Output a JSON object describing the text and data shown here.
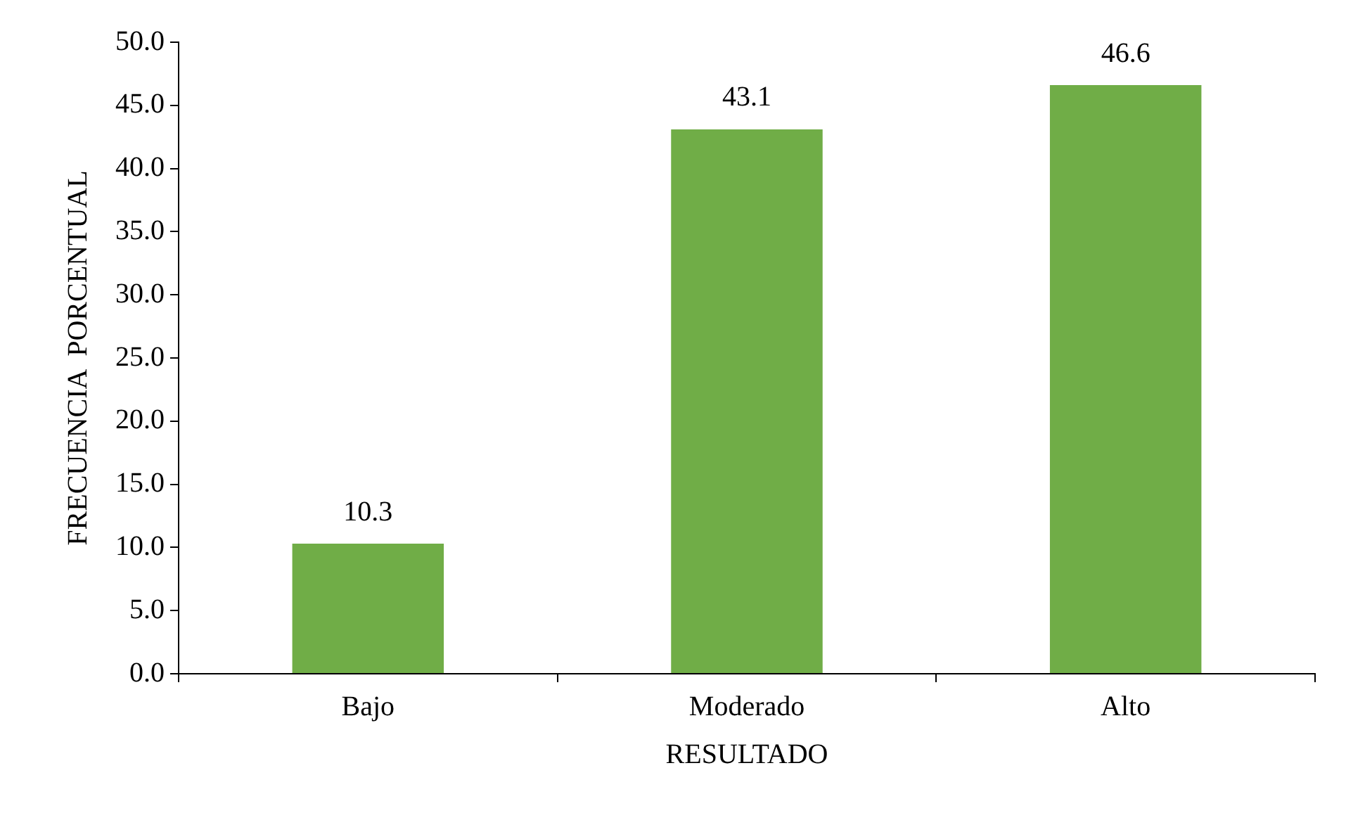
{
  "chart_data": {
    "type": "bar",
    "xlabel": "RESULTADO",
    "ylabel": "FRECUENCIA  PORCENTUAL",
    "categories": [
      "Bajo",
      "Moderado",
      "Alto"
    ],
    "values": [
      10.3,
      43.1,
      46.6
    ],
    "color": "#70ad47",
    "ylim": [
      0,
      50
    ],
    "yticks": [
      {
        "value": 0,
        "label": "0.0"
      },
      {
        "value": 5,
        "label": "5.0"
      },
      {
        "value": 10,
        "label": "10.0"
      },
      {
        "value": 15,
        "label": "15.0"
      },
      {
        "value": 20,
        "label": "20.0"
      },
      {
        "value": 25,
        "label": "25.0"
      },
      {
        "value": 30,
        "label": "30.0"
      },
      {
        "value": 35,
        "label": "35.0"
      },
      {
        "value": 40,
        "label": "40.0"
      },
      {
        "value": 45,
        "label": "45.0"
      },
      {
        "value": 50,
        "label": "50.0"
      }
    ],
    "data_labels": true,
    "grid": false,
    "legend": false
  }
}
